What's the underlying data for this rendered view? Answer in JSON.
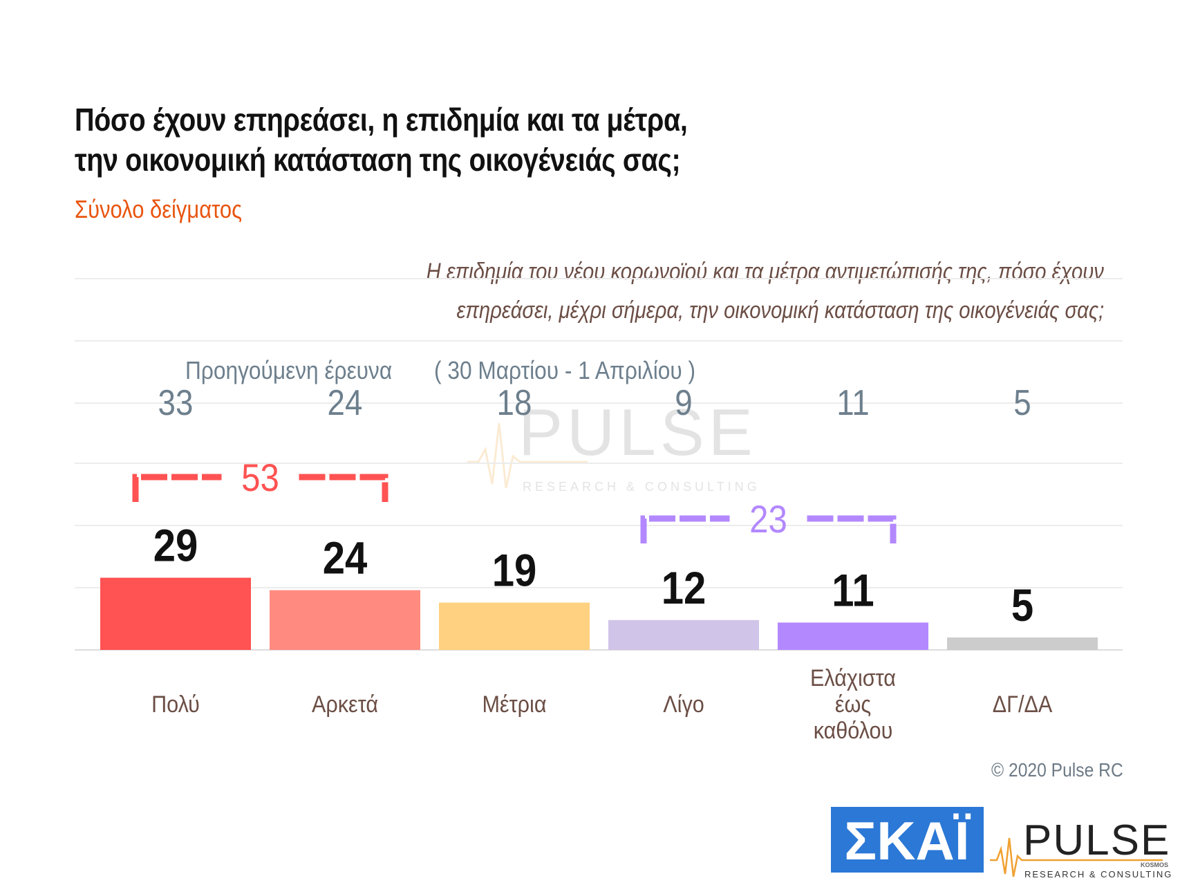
{
  "title_line1": "Πόσο έχουν επηρεάσει, η επιδημία και τα μέτρα,",
  "title_line2": "την οικονομική κατάσταση της οικογένειάς σας;",
  "subtitle": "Σύνολο δείγματος",
  "question_line1": "Η επιδημία του νέου κορωνοϊού και τα μέτρα αντιμετώπισής της, πόσο έχουν",
  "question_line2": "επηρεάσει, μέχρι σήμερα, την οικονομική κατάσταση της οικογένειάς σας;",
  "previous_label": "Προηγούμενη έρευνα",
  "previous_dates": "( 30 Μαρτίου - 1 Απριλίου )",
  "copyright": "© 2020 Pulse RC",
  "logos": {
    "skai": "ΣΚΑΪ",
    "pulse": "PULSE",
    "pulse_small": "KOSMOS",
    "pulse_tagline": "RESEARCH & CONSULTING"
  },
  "chart_data": {
    "type": "bar",
    "categories": [
      "Πολύ",
      "Αρκετά",
      "Μέτρια",
      "Λίγο",
      "Ελάχιστα έως καθόλου",
      "ΔΓ/ΔΑ"
    ],
    "category_lines": [
      [
        "Πολύ"
      ],
      [
        "Αρκετά"
      ],
      [
        "Μέτρια"
      ],
      [
        "Λίγο"
      ],
      [
        "Ελάχιστα",
        "έως",
        "καθόλου"
      ],
      [
        "ΔΓ/ΔΑ"
      ]
    ],
    "values": [
      29,
      24,
      19,
      12,
      11,
      5
    ],
    "previous_values": [
      33,
      24,
      18,
      9,
      11,
      5
    ],
    "colors": [
      "#ff5252",
      "#ff8a80",
      "#ffd180",
      "#d1c4e9",
      "#b388ff",
      "#cccccc"
    ],
    "groups": [
      {
        "value": 53,
        "from": 0,
        "to": 1,
        "color": "#ff5252"
      },
      {
        "value": 23,
        "from": 3,
        "to": 4,
        "color": "#b388ff"
      }
    ],
    "ylim": [
      0,
      100
    ],
    "grid": true
  }
}
